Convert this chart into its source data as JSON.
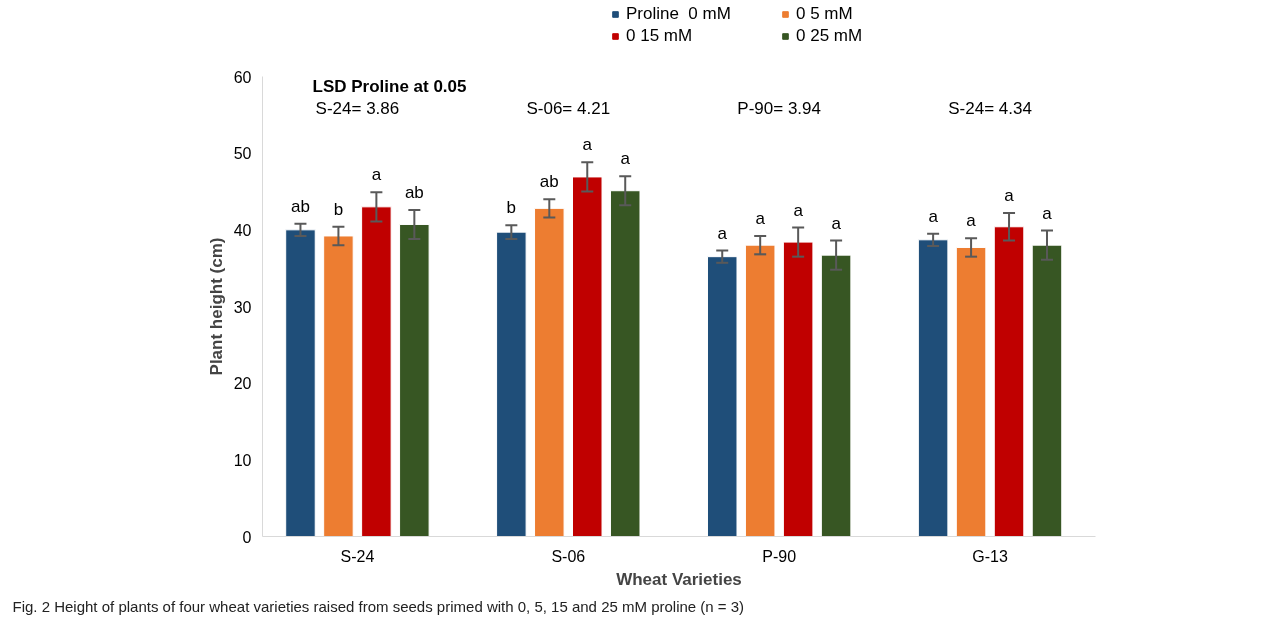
{
  "chart_data": {
    "type": "bar",
    "xlabel": "Wheat Varieties",
    "ylabel": "Plant height (cm)",
    "categories": [
      "S-24",
      "S-06",
      "P-90",
      "G-13"
    ],
    "ylim": [
      0,
      60
    ],
    "yticks": [
      0,
      10,
      20,
      30,
      40,
      50,
      60
    ],
    "grid": false,
    "legend": "top right",
    "series": [
      {
        "name": "Proline  0 mM",
        "color": "#1f4e79",
        "values": [
          40.0,
          39.7,
          36.5,
          38.7
        ],
        "errors": [
          0.8,
          0.9,
          0.8,
          0.8
        ],
        "value_labels": [
          "ab",
          "b",
          "a",
          "a"
        ]
      },
      {
        "name": "0 5 mM",
        "color": "#ed7d31",
        "values": [
          39.2,
          42.8,
          38.0,
          37.7
        ],
        "errors": [
          1.2,
          1.2,
          1.2,
          1.2
        ],
        "value_labels": [
          "b",
          "ab",
          "a",
          "a"
        ]
      },
      {
        "name": "0 15 mM",
        "color": "#c00000",
        "values": [
          43.0,
          46.9,
          38.4,
          40.4
        ],
        "errors": [
          1.9,
          1.9,
          1.9,
          1.8
        ],
        "value_labels": [
          "a",
          "a",
          "a",
          "a"
        ]
      },
      {
        "name": "0 25 mM",
        "color": "#375623",
        "values": [
          40.7,
          45.1,
          36.7,
          38.0
        ],
        "errors": [
          1.9,
          1.9,
          1.9,
          1.9
        ],
        "value_labels": [
          "ab",
          "a",
          "a",
          "a"
        ]
      }
    ],
    "annotations": [
      "LSD Proline at 0.05",
      "S-24= 3.86",
      "S-06= 4.21",
      "P-90= 3.94",
      "S-24= 4.34",
      "Fig. 2  Height of plants of four wheat varieties raised from seeds primed with 0, 5, 15 and 25 mM proline (n = 3)"
    ]
  }
}
